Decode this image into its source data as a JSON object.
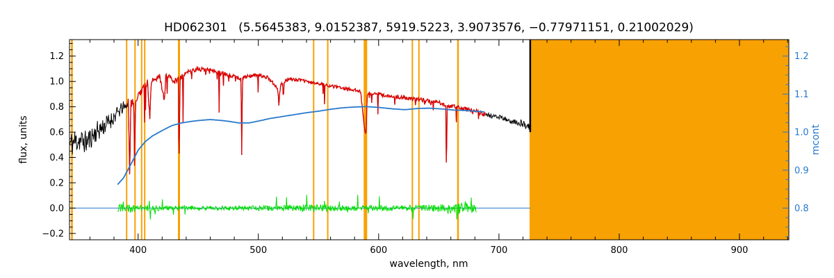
{
  "page": {
    "background": "#FFFFFF"
  },
  "chart_data": {
    "type": "line",
    "title": "HD062301   (5.5645383, 9.0152387, 5919.5223, 3.9073576, −0.77971151, 0.21002029)",
    "xlabel": "wavelength, nm",
    "ylabel_left": "flux, units",
    "ylabel_right": "mcont",
    "legend": "none",
    "grid": false,
    "axes": {
      "x": {
        "range": [
          343,
          941
        ],
        "major_ticks": [
          400,
          500,
          600,
          700,
          800,
          900
        ],
        "major_labels": [
          "400",
          "500",
          "600",
          "700",
          "800",
          "900"
        ],
        "minor_step": 20
      },
      "y_left": {
        "range": [
          -0.25,
          1.33
        ],
        "major_ticks": [
          -0.2,
          0.0,
          0.2,
          0.4,
          0.6,
          0.8,
          1.0,
          1.2
        ],
        "major_labels": [
          "−0.2",
          "0.0",
          "0.2",
          "0.4",
          "0.6",
          "0.8",
          "1.0",
          "1.2"
        ],
        "minor_step": 0.05
      },
      "y_right": {
        "range": [
          0.7167,
          1.2433
        ],
        "major_ticks": [
          0.8,
          0.9,
          1.0,
          1.1,
          1.2
        ],
        "major_labels": [
          "0.8",
          "0.9",
          "1.0",
          "1.1",
          "1.2"
        ],
        "minor_step": 0.025
      }
    },
    "colors": {
      "black": "#000000",
      "red": "#DC0000",
      "green": "#00DF00",
      "blue": "#2779CC",
      "orange": "#F8A102",
      "frame": "#000000"
    },
    "noise_seed": 11,
    "masked_region": {
      "x_start": 725.5,
      "x_end": 941
    },
    "line_markers": [
      {
        "x": 345,
        "w": 2.5
      },
      {
        "x": 390.5,
        "w": 2
      },
      {
        "x": 397.5,
        "w": 2
      },
      {
        "x": 403,
        "w": 2
      },
      {
        "x": 405.5,
        "w": 2
      },
      {
        "x": 434,
        "w": 3
      },
      {
        "x": 546,
        "w": 2
      },
      {
        "x": 557.7,
        "w": 2
      },
      {
        "x": 589,
        "w": 5
      },
      {
        "x": 628,
        "w": 2
      },
      {
        "x": 633.5,
        "w": 2
      },
      {
        "x": 666,
        "w": 2.5
      }
    ],
    "series": {
      "observed": {
        "name": "observed spectrum",
        "color_key": "black",
        "x_start": 343,
        "x_end": 726,
        "anchors": [
          [
            343,
            0.5
          ],
          [
            350,
            0.54
          ],
          [
            357,
            0.52
          ],
          [
            365,
            0.6
          ],
          [
            372,
            0.65
          ],
          [
            378,
            0.7
          ],
          [
            384,
            0.76
          ],
          [
            388,
            0.8
          ],
          [
            392,
            0.83
          ],
          [
            393,
            0.25
          ],
          [
            394,
            0.83
          ],
          [
            396.5,
            0.84
          ],
          [
            397,
            0.35
          ],
          [
            398,
            0.85
          ],
          [
            401,
            0.9
          ],
          [
            404,
            0.95
          ],
          [
            408,
            0.99
          ],
          [
            409.8,
            0.7
          ],
          [
            411,
            1.0
          ],
          [
            414,
            1.02
          ],
          [
            418,
            1.04
          ],
          [
            421.8,
            0.85
          ],
          [
            423,
            1.04
          ],
          [
            427,
            1.03
          ],
          [
            430,
            1.0
          ],
          [
            433.5,
            1.02
          ],
          [
            434,
            0.3
          ],
          [
            435,
            1.03
          ],
          [
            438,
            1.06
          ],
          [
            444,
            1.08
          ],
          [
            450,
            1.1
          ],
          [
            455,
            1.09
          ],
          [
            462,
            1.09
          ],
          [
            468,
            1.07
          ],
          [
            475,
            1.05
          ],
          [
            480,
            1.04
          ],
          [
            485.5,
            1.02
          ],
          [
            486.1,
            0.55
          ],
          [
            487,
            1.03
          ],
          [
            492,
            1.04
          ],
          [
            500,
            1.05
          ],
          [
            508,
            1.03
          ],
          [
            516,
            0.95
          ],
          [
            517,
            0.82
          ],
          [
            518.5,
            0.97
          ],
          [
            525,
            1.02
          ],
          [
            535,
            1.01
          ],
          [
            545,
            0.99
          ],
          [
            555,
            0.975
          ],
          [
            565,
            0.955
          ],
          [
            575,
            0.94
          ],
          [
            585,
            0.925
          ],
          [
            588.5,
            0.6
          ],
          [
            589.5,
            0.58
          ],
          [
            590.5,
            0.9
          ],
          [
            598,
            0.905
          ],
          [
            608,
            0.885
          ],
          [
            618,
            0.875
          ],
          [
            626,
            0.865
          ],
          [
            635,
            0.855
          ],
          [
            645,
            0.84
          ],
          [
            652,
            0.83
          ],
          [
            655.8,
            0.8
          ],
          [
            656.3,
            0.27
          ],
          [
            657,
            0.8
          ],
          [
            662,
            0.81
          ],
          [
            668,
            0.79
          ],
          [
            675,
            0.775
          ],
          [
            682,
            0.76
          ],
          [
            690,
            0.735
          ],
          [
            698,
            0.72
          ],
          [
            706,
            0.7
          ],
          [
            714,
            0.68
          ],
          [
            720,
            0.665
          ],
          [
            726,
            0.63
          ]
        ],
        "noise_amp": [
          [
            343,
            0.11
          ],
          [
            358,
            0.09
          ],
          [
            372,
            0.075
          ],
          [
            383,
            0.055
          ],
          [
            392,
            0.04
          ],
          [
            400,
            0.03
          ],
          [
            415,
            0.022
          ],
          [
            440,
            0.018
          ],
          [
            480,
            0.015
          ],
          [
            540,
            0.012
          ],
          [
            600,
            0.013
          ],
          [
            650,
            0.016
          ],
          [
            690,
            0.02
          ],
          [
            710,
            0.025
          ],
          [
            726,
            0.03
          ]
        ],
        "spike_depth": [
          [
            386,
            0.5
          ],
          [
            400,
            0.55
          ],
          [
            430,
            0.5
          ],
          [
            460,
            0.4
          ],
          [
            490,
            0.3
          ],
          [
            520,
            0.25
          ],
          [
            560,
            0.2
          ],
          [
            600,
            0.18
          ],
          [
            640,
            0.2
          ],
          [
            690,
            0.12
          ]
        ],
        "spike_prob": 0.06
      },
      "fit": {
        "name": "fitted spectrum",
        "color_key": "red",
        "x_start": 391,
        "x_end": 689
      },
      "mcont": {
        "name": "continuum (mcont, right axis)",
        "color_key": "blue",
        "axis": "right",
        "anchors": [
          [
            383,
            0.862
          ],
          [
            388,
            0.88
          ],
          [
            394,
            0.915
          ],
          [
            400,
            0.952
          ],
          [
            406,
            0.975
          ],
          [
            412,
            0.99
          ],
          [
            420,
            1.004
          ],
          [
            428,
            1.017
          ],
          [
            436,
            1.024
          ],
          [
            444,
            1.028
          ],
          [
            452,
            1.031
          ],
          [
            460,
            1.033
          ],
          [
            468,
            1.031
          ],
          [
            476,
            1.028
          ],
          [
            484,
            1.024
          ],
          [
            492,
            1.024
          ],
          [
            500,
            1.029
          ],
          [
            510,
            1.036
          ],
          [
            520,
            1.041
          ],
          [
            530,
            1.046
          ],
          [
            540,
            1.051
          ],
          [
            550,
            1.055
          ],
          [
            560,
            1.06
          ],
          [
            570,
            1.064
          ],
          [
            580,
            1.066
          ],
          [
            590,
            1.067
          ],
          [
            600,
            1.065
          ],
          [
            612,
            1.061
          ],
          [
            622,
            1.059
          ],
          [
            632,
            1.062
          ],
          [
            642,
            1.063
          ],
          [
            652,
            1.061
          ],
          [
            662,
            1.058
          ],
          [
            672,
            1.057
          ],
          [
            680,
            1.055
          ],
          [
            688,
            1.053
          ]
        ]
      },
      "residual": {
        "name": "fit residuals",
        "color_key": "green",
        "x_start": 383,
        "x_end": 681,
        "base": 0.0,
        "noise_amp": [
          [
            383,
            0.035
          ],
          [
            400,
            0.025
          ],
          [
            430,
            0.02
          ],
          [
            470,
            0.018
          ],
          [
            510,
            0.022
          ],
          [
            545,
            0.03
          ],
          [
            575,
            0.022
          ],
          [
            610,
            0.02
          ],
          [
            640,
            0.028
          ],
          [
            660,
            0.04
          ],
          [
            672,
            0.05
          ],
          [
            681,
            0.045
          ]
        ],
        "spike_prob": 0.05,
        "spike_amp": 0.05
      },
      "zero_line": {
        "name": "zero line",
        "color_key": "blue",
        "y": 0.0,
        "x_start": 343,
        "x_end": 726
      },
      "edge_line": {
        "name": "spectrum edge",
        "color_key": "black",
        "x": 726,
        "y_start": 0.6,
        "y_end": 1.33
      }
    }
  }
}
